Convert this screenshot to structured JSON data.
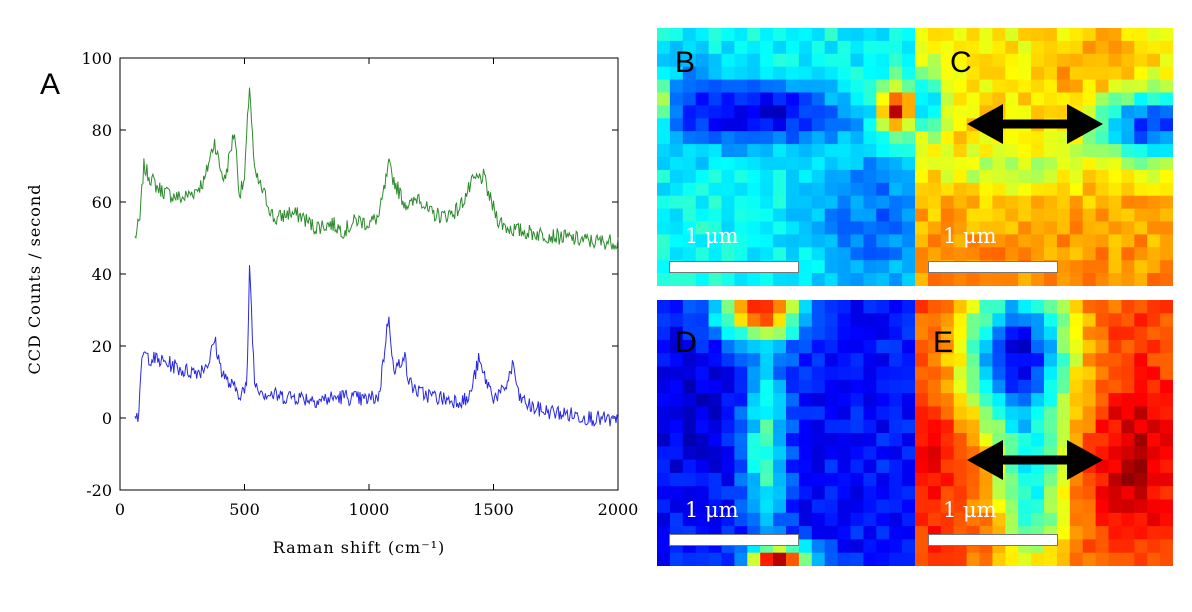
{
  "panel_a": {
    "letter": "A",
    "chart_data": {
      "type": "line",
      "xlabel": "Raman shift (cm⁻¹)",
      "ylabel": "CCD Counts / second",
      "xlim": [
        0,
        2000
      ],
      "ylim": [
        -20,
        100
      ],
      "x_ticks": [
        "0",
        "500",
        "1000",
        "1500",
        "2000"
      ],
      "y_ticks": [
        "-20",
        "0",
        "20",
        "40",
        "60",
        "80",
        "100"
      ],
      "grid": false,
      "x_range": [
        60,
        2000
      ],
      "series": [
        {
          "color": "#2e8b2e",
          "x": [
            60,
            80,
            95,
            110,
            150,
            200,
            250,
            300,
            340,
            360,
            380,
            400,
            420,
            460,
            480,
            500,
            520,
            540,
            580,
            620,
            680,
            730,
            780,
            850,
            900,
            950,
            1000,
            1040,
            1080,
            1100,
            1140,
            1170,
            1200,
            1240,
            1300,
            1360,
            1420,
            1460,
            1490,
            1520,
            1550,
            1600,
            1700,
            1800,
            1900,
            2000
          ],
          "y": [
            50,
            55,
            70,
            68,
            64,
            62,
            61,
            63,
            66,
            72,
            77,
            70,
            66,
            80,
            62,
            66,
            93,
            68,
            62,
            55,
            57,
            56,
            53,
            54,
            52,
            55,
            54,
            56,
            70,
            66,
            60,
            59,
            62,
            57,
            56,
            58,
            66,
            67,
            60,
            55,
            53,
            52,
            51,
            50,
            49,
            49
          ]
        },
        {
          "color": "#2a2adf",
          "x": [
            60,
            75,
            90,
            110,
            150,
            200,
            260,
            320,
            360,
            380,
            400,
            430,
            480,
            510,
            520,
            540,
            580,
            640,
            700,
            800,
            900,
            980,
            1040,
            1080,
            1100,
            1140,
            1160,
            1200,
            1260,
            1320,
            1400,
            1440,
            1460,
            1500,
            1540,
            1580,
            1600,
            1650,
            1700,
            1800,
            1900,
            2000
          ],
          "y": [
            2,
            0,
            18,
            17,
            16,
            15,
            13,
            13,
            16,
            22,
            15,
            10,
            7,
            8,
            43,
            10,
            7,
            6,
            6,
            5,
            6,
            5,
            6,
            29,
            12,
            18,
            10,
            7,
            6,
            5,
            5,
            16,
            12,
            6,
            7,
            15,
            6,
            3,
            2,
            1,
            0,
            -1
          ]
        }
      ]
    }
  },
  "maps": [
    {
      "letter": "B",
      "scale_label": "1 μm",
      "has_arrow": false,
      "colormap": "jet",
      "scale_bar_um": 1
    },
    {
      "letter": "C",
      "scale_label": "1 μm",
      "has_arrow": true,
      "colormap": "jet",
      "scale_bar_um": 1
    },
    {
      "letter": "D",
      "scale_label": "1 μm",
      "has_arrow": false,
      "colormap": "jet",
      "scale_bar_um": 1
    },
    {
      "letter": "E",
      "scale_label": "1 μm",
      "has_arrow": true,
      "colormap": "jet",
      "scale_bar_um": 1
    }
  ]
}
